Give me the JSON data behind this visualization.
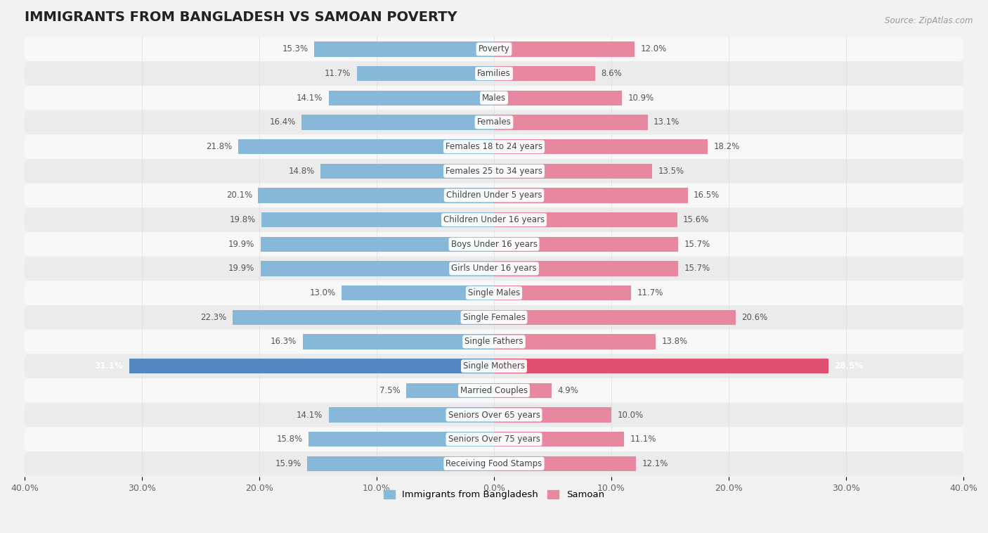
{
  "title": "IMMIGRANTS FROM BANGLADESH VS SAMOAN POVERTY",
  "source": "Source: ZipAtlas.com",
  "categories": [
    "Poverty",
    "Families",
    "Males",
    "Females",
    "Females 18 to 24 years",
    "Females 25 to 34 years",
    "Children Under 5 years",
    "Children Under 16 years",
    "Boys Under 16 years",
    "Girls Under 16 years",
    "Single Males",
    "Single Females",
    "Single Fathers",
    "Single Mothers",
    "Married Couples",
    "Seniors Over 65 years",
    "Seniors Over 75 years",
    "Receiving Food Stamps"
  ],
  "bangladesh_values": [
    15.3,
    11.7,
    14.1,
    16.4,
    21.8,
    14.8,
    20.1,
    19.8,
    19.9,
    19.9,
    13.0,
    22.3,
    16.3,
    31.1,
    7.5,
    14.1,
    15.8,
    15.9
  ],
  "samoan_values": [
    12.0,
    8.6,
    10.9,
    13.1,
    18.2,
    13.5,
    16.5,
    15.6,
    15.7,
    15.7,
    11.7,
    20.6,
    13.8,
    28.5,
    4.9,
    10.0,
    11.1,
    12.1
  ],
  "bangladesh_color": "#88b8d8",
  "samoan_color": "#e888a0",
  "single_mothers_bangladesh_color": "#5588c0",
  "single_mothers_samoan_color": "#e05070",
  "background_color": "#f2f2f2",
  "row_bg_light": "#f8f8f8",
  "row_bg_dark": "#ebebeb",
  "xlim": 40.0,
  "bar_height": 0.62,
  "title_fontsize": 14,
  "label_fontsize": 8.5,
  "value_fontsize": 8.5,
  "legend_label_bangladesh": "Immigrants from Bangladesh",
  "legend_label_samoan": "Samoan"
}
